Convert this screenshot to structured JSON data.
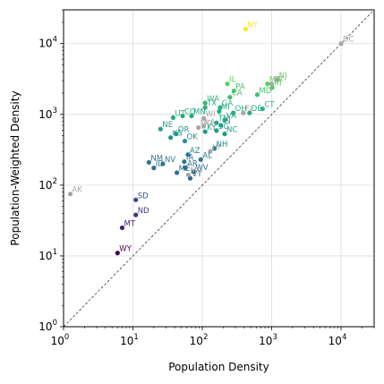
{
  "chart_data": {
    "type": "scatter",
    "title": "",
    "xlabel": "Population Density",
    "ylabel": "Population-Weighted Density",
    "xscale": "log",
    "yscale": "log",
    "xlim": [
      1,
      30000
    ],
    "ylim": [
      1,
      30000
    ],
    "grid": true,
    "reference_line": "y = x",
    "x_ticks": [
      {
        "value": 1,
        "base": "10",
        "exp": "0"
      },
      {
        "value": 10,
        "base": "10",
        "exp": "1"
      },
      {
        "value": 100,
        "base": "10",
        "exp": "2"
      },
      {
        "value": 1000,
        "base": "10",
        "exp": "3"
      },
      {
        "value": 10000,
        "base": "10",
        "exp": "4"
      }
    ],
    "y_ticks": [
      {
        "value": 1,
        "base": "10",
        "exp": "0"
      },
      {
        "value": 10,
        "base": "10",
        "exp": "1"
      },
      {
        "value": 100,
        "base": "10",
        "exp": "2"
      },
      {
        "value": 1000,
        "base": "10",
        "exp": "3"
      },
      {
        "value": 10000,
        "base": "10",
        "exp": "4"
      }
    ],
    "colormap": "viridis",
    "unlabeled_point_color": "#a6a6a6",
    "points": [
      {
        "label": "NY",
        "x": 420,
        "y": 16000,
        "labeled": true
      },
      {
        "label": "DC",
        "x": 10000,
        "y": 10000,
        "labeled": false
      },
      {
        "label": "NJ",
        "x": 1200,
        "y": 3100,
        "labeled": true
      },
      {
        "label": "MA",
        "x": 870,
        "y": 2700,
        "labeled": true
      },
      {
        "label": "RI",
        "x": 1020,
        "y": 2400,
        "labeled": true
      },
      {
        "label": "PR",
        "x": 1000,
        "y": 2700,
        "labeled": false
      },
      {
        "label": "IL",
        "x": 230,
        "y": 2700,
        "labeled": true
      },
      {
        "label": "MD",
        "x": 620,
        "y": 1900,
        "labeled": true
      },
      {
        "label": "PA",
        "x": 285,
        "y": 2150,
        "labeled": true
      },
      {
        "label": "CA",
        "x": 250,
        "y": 1750,
        "labeled": true
      },
      {
        "label": "WA",
        "x": 110,
        "y": 1450,
        "labeled": true
      },
      {
        "label": "CT",
        "x": 740,
        "y": 1200,
        "labeled": true
      },
      {
        "label": "GA",
        "x": 180,
        "y": 1250,
        "labeled": true
      },
      {
        "label": "DE",
        "x": 480,
        "y": 1050,
        "labeled": true
      },
      {
        "label": "OH",
        "x": 280,
        "y": 1050,
        "labeled": true
      },
      {
        "label": "MI",
        "x": 175,
        "y": 1100,
        "labeled": true
      },
      {
        "label": "TX",
        "x": 110,
        "y": 1250,
        "labeled": true
      },
      {
        "label": "MN",
        "x": 70,
        "y": 950,
        "labeled": true
      },
      {
        "label": "CO",
        "x": 52,
        "y": 950,
        "labeled": true
      },
      {
        "label": "UT",
        "x": 38,
        "y": 900,
        "labeled": true
      },
      {
        "label": "NE",
        "x": 25,
        "y": 620,
        "labeled": true
      },
      {
        "label": "OR",
        "x": 42,
        "y": 530,
        "labeled": true
      },
      {
        "label": "KS",
        "x": 35,
        "y": 470,
        "labeled": true
      },
      {
        "label": "OK",
        "x": 56,
        "y": 420,
        "labeled": true
      },
      {
        "label": "VA",
        "x": 210,
        "y": 830,
        "labeled": true
      },
      {
        "label": "IN",
        "x": 185,
        "y": 700,
        "labeled": true
      },
      {
        "label": "FL",
        "x": 390,
        "y": 1050,
        "labeled": false
      },
      {
        "label": "KY",
        "x": 110,
        "y": 570,
        "labeled": true
      },
      {
        "label": "SC",
        "x": 160,
        "y": 590,
        "labeled": true
      },
      {
        "label": "NC",
        "x": 210,
        "y": 530,
        "labeled": true
      },
      {
        "label": "TN",
        "x": 160,
        "y": 760,
        "labeled": true
      },
      {
        "label": "WI",
        "x": 105,
        "y": 880,
        "labeled": false
      },
      {
        "label": "MO",
        "x": 88,
        "y": 650,
        "labeled": false
      },
      {
        "label": "LA",
        "x": 105,
        "y": 680,
        "labeled": false
      },
      {
        "label": "AZ",
        "x": 62,
        "y": 270,
        "labeled": true
      },
      {
        "label": "NH",
        "x": 150,
        "y": 330,
        "labeled": true
      },
      {
        "label": "AL",
        "x": 95,
        "y": 230,
        "labeled": true
      },
      {
        "label": "NM",
        "x": 17,
        "y": 210,
        "labeled": true
      },
      {
        "label": "NV",
        "x": 27,
        "y": 200,
        "labeled": true
      },
      {
        "label": "ID",
        "x": 20,
        "y": 175,
        "labeled": true
      },
      {
        "label": "IA",
        "x": 55,
        "y": 215,
        "labeled": true
      },
      {
        "label": "AR",
        "x": 57,
        "y": 175,
        "labeled": true
      },
      {
        "label": "ME",
        "x": 43,
        "y": 150,
        "labeled": true
      },
      {
        "label": "WV",
        "x": 75,
        "y": 155,
        "labeled": true
      },
      {
        "label": "VT",
        "x": 67,
        "y": 125,
        "labeled": true
      },
      {
        "label": "MS",
        "x": 63,
        "y": 140,
        "labeled": false
      },
      {
        "label": "HI",
        "x": 130,
        "y": 300,
        "labeled": false
      },
      {
        "label": "AK",
        "x": 1.25,
        "y": 75,
        "labeled": false
      },
      {
        "label": "SD",
        "x": 11,
        "y": 62,
        "labeled": true
      },
      {
        "label": "ND",
        "x": 11,
        "y": 38,
        "labeled": true
      },
      {
        "label": "MT",
        "x": 7,
        "y": 25,
        "labeled": true
      },
      {
        "label": "WY",
        "x": 6,
        "y": 11,
        "labeled": true
      }
    ]
  }
}
